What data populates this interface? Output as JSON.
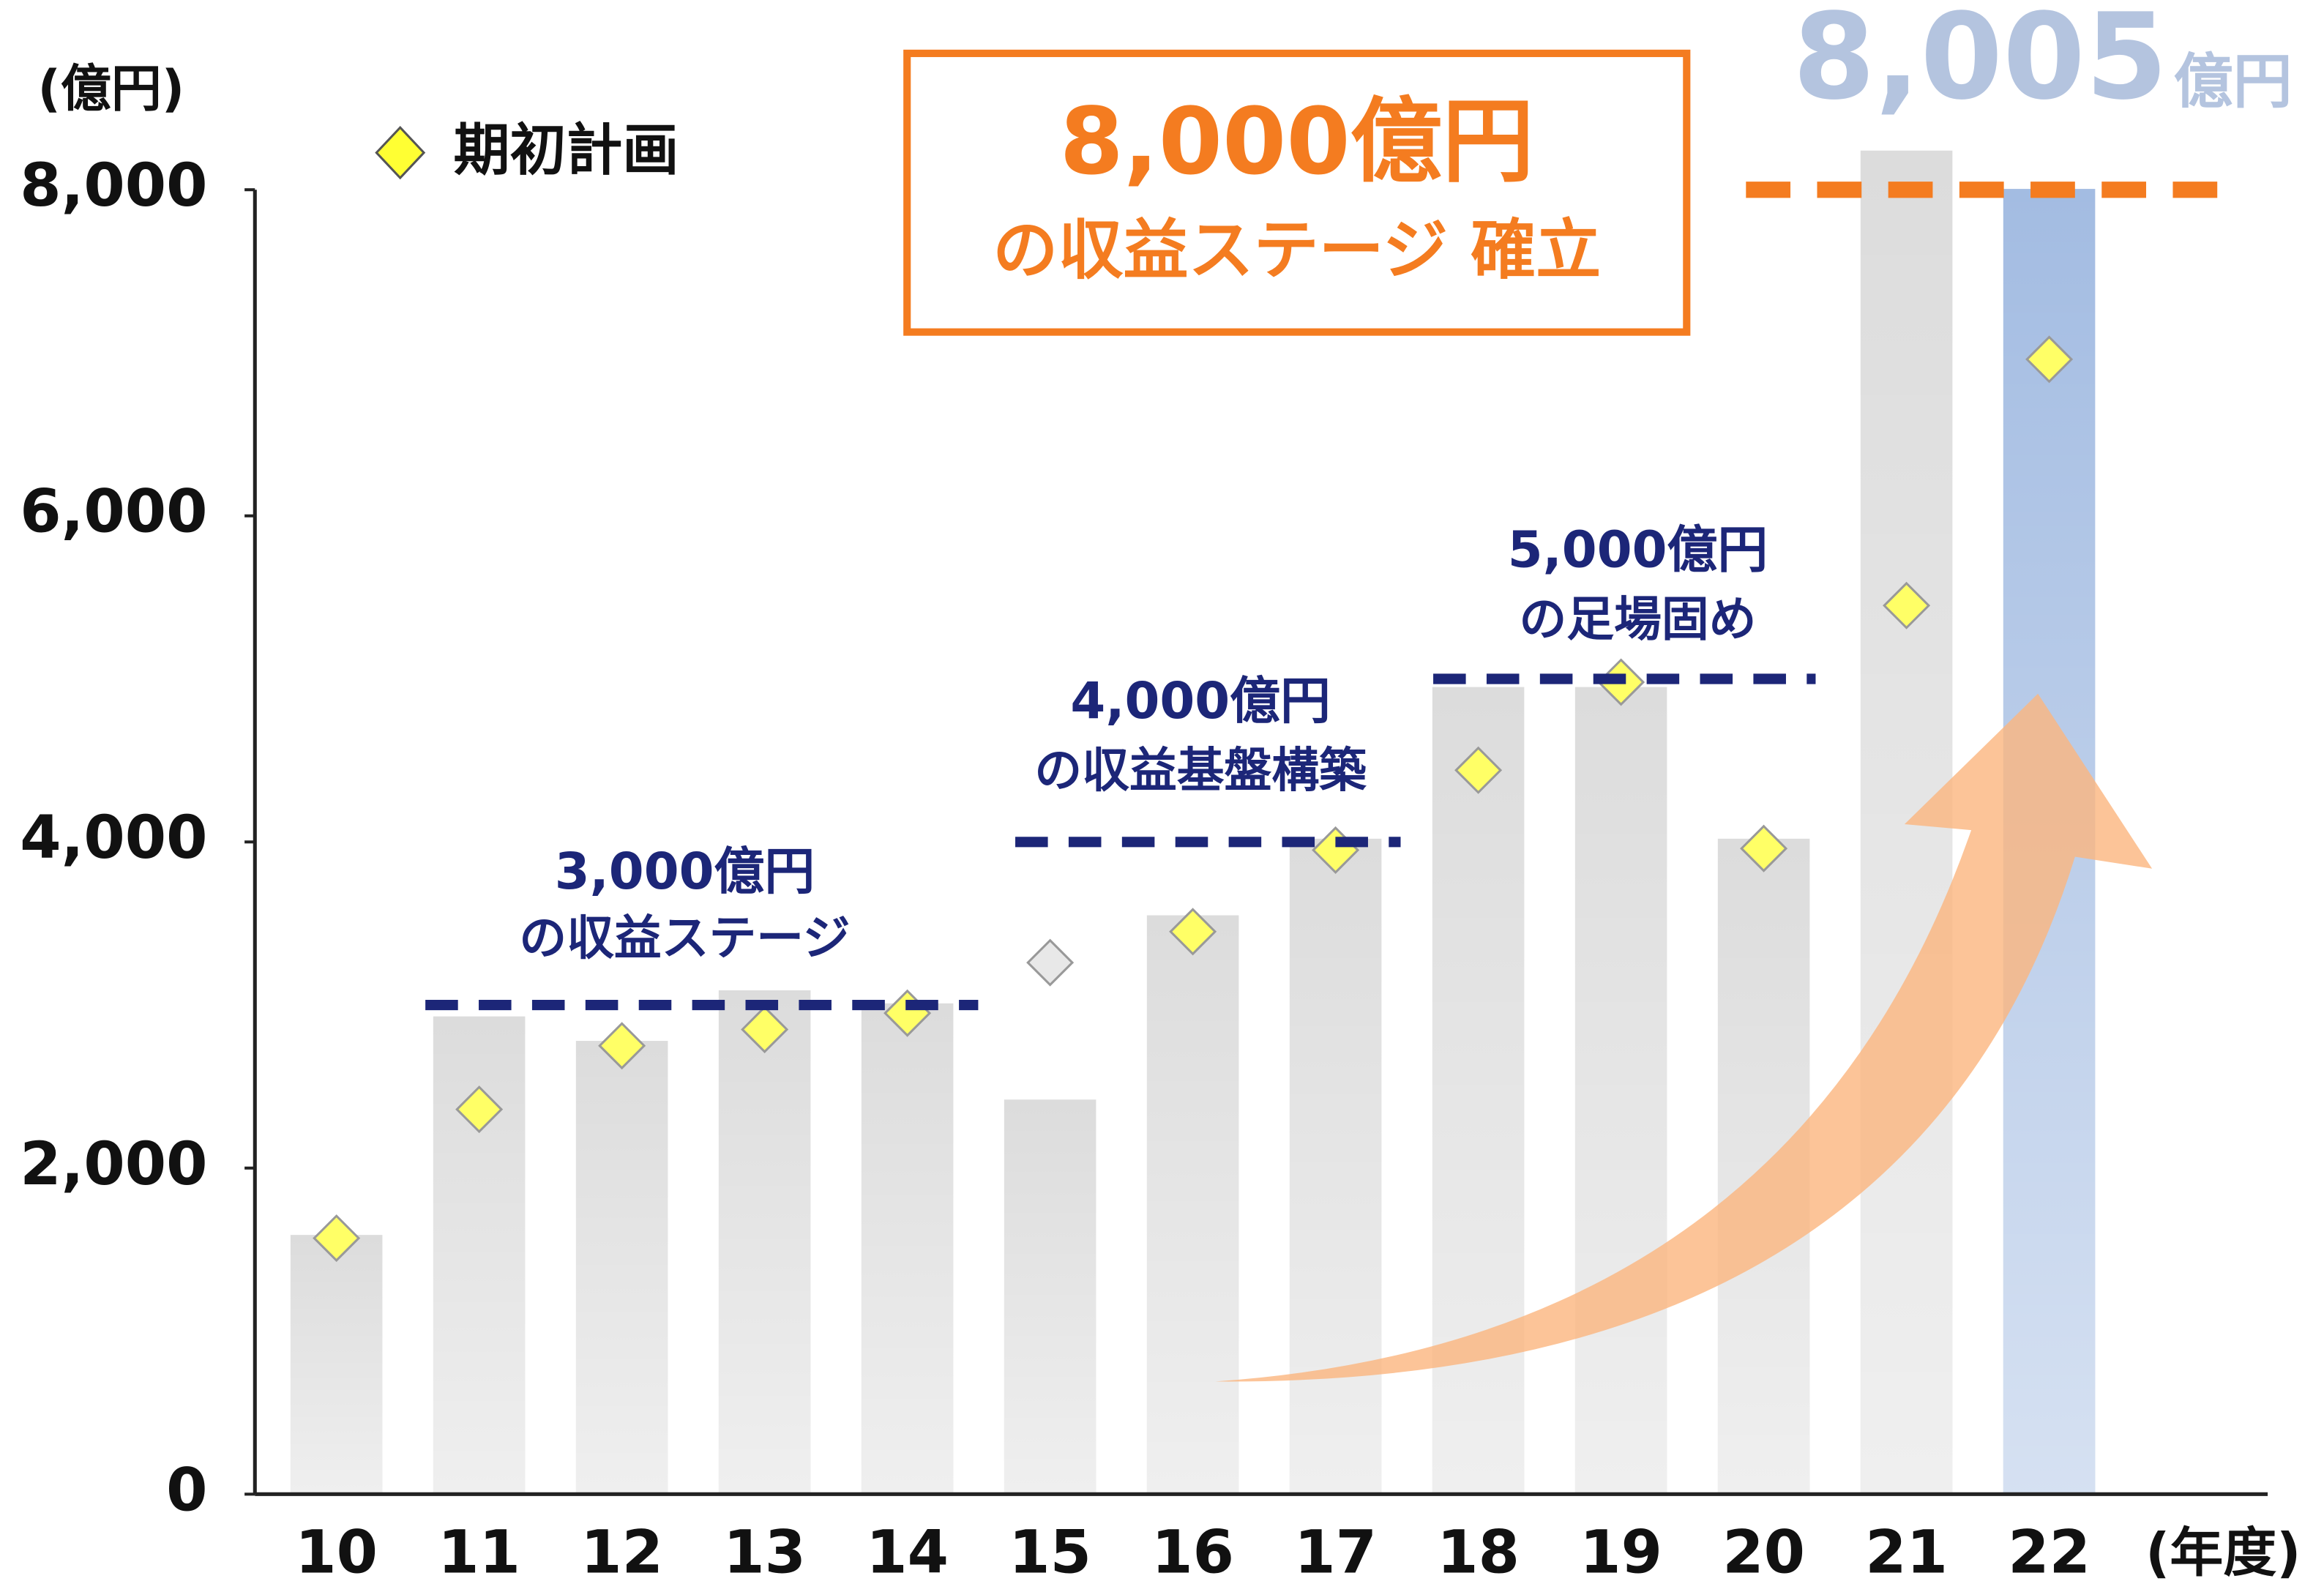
{
  "chart_data": {
    "type": "bar",
    "y_unit": "(億円)",
    "x_unit": "(年度)",
    "categories": [
      "10",
      "11",
      "12",
      "13",
      "14",
      "15",
      "16",
      "17",
      "18",
      "19",
      "20",
      "21",
      "22"
    ],
    "ylim": [
      0,
      8000
    ],
    "yticks": [
      0,
      {
        "value": 2000,
        "label": "2,000"
      },
      {
        "value": 4000,
        "label": "4,000"
      },
      {
        "value": 6000,
        "label": "6,000"
      },
      {
        "value": 8000,
        "label": "8,000"
      }
    ],
    "series": [
      {
        "type": "bar",
        "values": [
          1590,
          2930,
          2780,
          3090,
          3010,
          2420,
          3550,
          4020,
          4950,
          4950,
          4020,
          8240,
          8005
        ],
        "colors": [
          "#dcdcdc",
          "#dcdcdc",
          "#dcdcdc",
          "#dcdcdc",
          "#dcdcdc",
          "#dcdcdc",
          "#dcdcdc",
          "#dcdcdc",
          "#dcdcdc",
          "#dcdcdc",
          "#dcdcdc",
          "#dcdcdc",
          "#a3bce2"
        ],
        "value_labels": [
          null,
          null,
          null,
          null,
          null,
          null,
          null,
          null,
          null,
          null,
          null,
          null,
          "8,005"
        ],
        "value_label_unit": "億円",
        "value_label_color": "#b4c4df"
      },
      {
        "type": "diamond",
        "name": "期初計画",
        "values": [
          1570,
          2360,
          2750,
          2850,
          2950,
          3260,
          3450,
          3950,
          4440,
          4980,
          3960,
          5450,
          6960
        ],
        "colors": [
          "#ffff66",
          "#ffff66",
          "#ffff66",
          "#ffff66",
          "#ffff66",
          "#e8e8e8",
          "#ffff66",
          "#ffff66",
          "#ffff66",
          "#ffff66",
          "#ffff66",
          "#ffff66",
          "#ffff66"
        ]
      }
    ],
    "annotations": [
      {
        "text": "3,000億円",
        "subtext": "の収益ステージ",
        "level": 3000,
        "color": "#1c2678"
      },
      {
        "text": "4,000億円",
        "subtext": "の収益基盤構築",
        "level": 4000,
        "color": "#1c2678"
      },
      {
        "text": "5,000億円",
        "subtext": "の足場固め",
        "level": 5000,
        "color": "#1c2678"
      },
      {
        "text": "8,000億円",
        "subtext": "の収益ステージ 確立",
        "level": 8000,
        "color": "#f47c20"
      }
    ]
  }
}
